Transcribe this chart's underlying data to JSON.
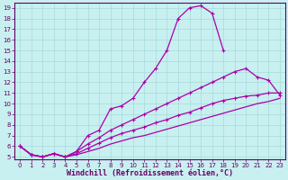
{
  "xlabel": "Windchill (Refroidissement éolien,°C)",
  "bg_color": "#c8f0f0",
  "grid_color": "#a8dada",
  "line_color": "#aa00aa",
  "xlim": [
    -0.5,
    23.5
  ],
  "ylim": [
    4.8,
    19.5
  ],
  "xticks": [
    0,
    1,
    2,
    3,
    4,
    5,
    6,
    7,
    8,
    9,
    10,
    11,
    12,
    13,
    14,
    15,
    16,
    17,
    18,
    19,
    20,
    21,
    22,
    23
  ],
  "yticks": [
    5,
    6,
    7,
    8,
    9,
    10,
    11,
    12,
    13,
    14,
    15,
    16,
    17,
    18,
    19
  ],
  "line1_x": [
    0,
    1,
    2,
    3,
    4,
    5,
    6,
    7,
    8,
    9,
    10,
    11,
    12,
    13,
    14,
    15,
    16,
    17,
    18
  ],
  "line1_y": [
    6.0,
    5.2,
    5.0,
    5.3,
    5.0,
    5.5,
    7.0,
    7.5,
    9.5,
    9.8,
    10.5,
    12.0,
    13.3,
    15.0,
    18.0,
    19.0,
    19.2,
    18.5,
    15.0
  ],
  "line2_x": [
    0,
    1,
    2,
    3,
    4,
    5,
    6,
    7,
    8,
    9,
    10,
    11,
    12,
    13,
    14,
    15,
    16,
    17,
    18,
    19,
    20,
    21,
    22,
    23
  ],
  "line2_y": [
    6.0,
    5.2,
    5.0,
    5.3,
    5.0,
    5.5,
    6.2,
    6.8,
    7.5,
    8.0,
    8.5,
    9.0,
    9.5,
    10.0,
    10.5,
    11.0,
    11.5,
    12.0,
    12.5,
    13.0,
    13.3,
    12.5,
    12.2,
    10.8
  ],
  "line3_x": [
    0,
    1,
    2,
    3,
    4,
    5,
    6,
    7,
    8,
    9,
    10,
    11,
    12,
    13,
    14,
    15,
    16,
    17,
    18,
    19,
    20,
    21,
    22,
    23
  ],
  "line3_y": [
    6.0,
    5.2,
    5.0,
    5.3,
    5.0,
    5.3,
    5.8,
    6.3,
    6.8,
    7.2,
    7.5,
    7.8,
    8.2,
    8.5,
    8.9,
    9.2,
    9.6,
    10.0,
    10.3,
    10.5,
    10.7,
    10.8,
    11.0,
    11.0
  ],
  "line4_x": [
    0,
    1,
    2,
    3,
    4,
    5,
    6,
    7,
    8,
    9,
    10,
    11,
    12,
    13,
    14,
    15,
    16,
    17,
    18,
    19,
    20,
    21,
    22,
    23
  ],
  "line4_y": [
    6.0,
    5.2,
    5.0,
    5.3,
    5.0,
    5.2,
    5.5,
    5.8,
    6.2,
    6.5,
    6.8,
    7.0,
    7.3,
    7.6,
    7.9,
    8.2,
    8.5,
    8.8,
    9.1,
    9.4,
    9.7,
    10.0,
    10.2,
    10.5
  ],
  "marker": "+",
  "markersize": 3,
  "linewidth": 0.9,
  "tick_fontsize": 5.0,
  "label_fontsize": 6.0
}
